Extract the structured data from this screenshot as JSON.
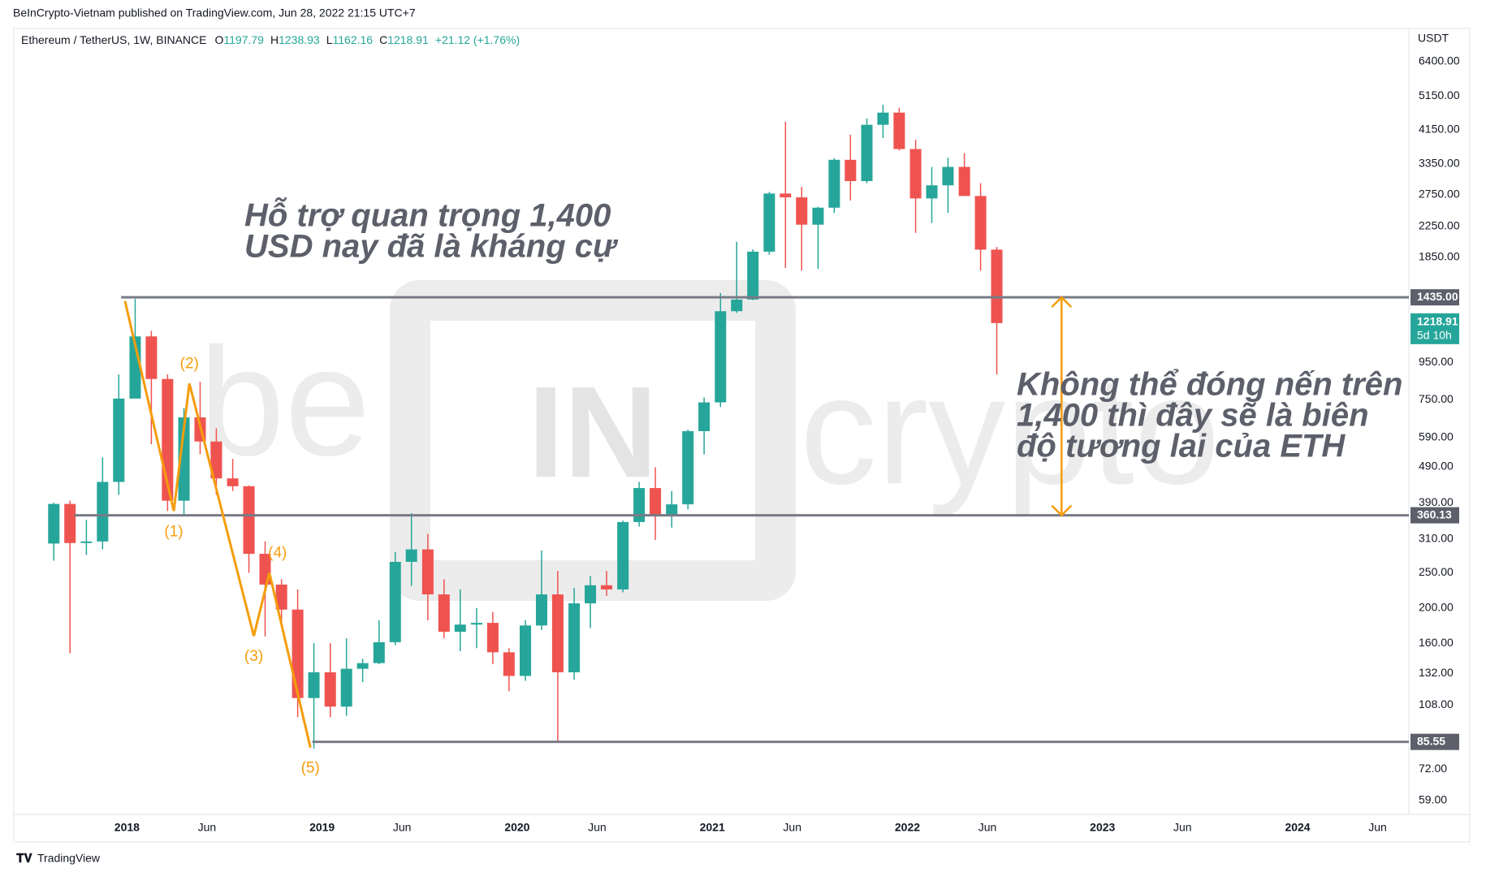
{
  "published": "BeInCrypto-Vietnam published on TradingView.com, Jun 28, 2022 21:15 UTC+7",
  "footer": "TradingView",
  "chart_data": {
    "type": "candlestick",
    "symbol": "Ethereum / TetherUS, 1W, BINANCE",
    "ohlc_header": [
      {
        "label": "O",
        "value": 1197.79
      },
      {
        "label": "H",
        "value": 1238.93
      },
      {
        "label": "L",
        "value": 1162.16
      },
      {
        "label": "C",
        "value": 1218.91
      }
    ],
    "change": "+21.12 (+1.76%)",
    "unit": "USDT",
    "log_scale": true,
    "up_color": "#26a69a",
    "down_color": "#ef5350",
    "xlim": [
      2017.42,
      2024.57
    ],
    "ylim": [
      54,
      7900
    ],
    "xticks": [
      {
        "value": 2018,
        "label": "2018"
      },
      {
        "value": 2018.41,
        "label": "Jun"
      },
      {
        "value": 2019,
        "label": "2019"
      },
      {
        "value": 2019.41,
        "label": "Jun"
      },
      {
        "value": 2020,
        "label": "2020"
      },
      {
        "value": 2020.41,
        "label": "Jun"
      },
      {
        "value": 2021,
        "label": "2021"
      },
      {
        "value": 2021.41,
        "label": "Jun"
      },
      {
        "value": 2022,
        "label": "2022"
      },
      {
        "value": 2022.41,
        "label": "Jun"
      },
      {
        "value": 2023,
        "label": "2023"
      },
      {
        "value": 2023.41,
        "label": "Jun"
      },
      {
        "value": 2024,
        "label": "2024"
      },
      {
        "value": 2024.41,
        "label": "Jun"
      }
    ],
    "yticks": [
      {
        "value": 6400,
        "label": "6400.00"
      },
      {
        "value": 5150,
        "label": "5150.00"
      },
      {
        "value": 4150,
        "label": "4150.00"
      },
      {
        "value": 3350,
        "label": "3350.00"
      },
      {
        "value": 2750,
        "label": "2750.00"
      },
      {
        "value": 2250,
        "label": "2250.00"
      },
      {
        "value": 1850,
        "label": "1850.00"
      },
      {
        "value": 950,
        "label": "950.00"
      },
      {
        "value": 750,
        "label": "750.00"
      },
      {
        "value": 590,
        "label": "590.00"
      },
      {
        "value": 490,
        "label": "490.00"
      },
      {
        "value": 390,
        "label": "390.00"
      },
      {
        "value": 310,
        "label": "310.00"
      },
      {
        "value": 250,
        "label": "250.00"
      },
      {
        "value": 200,
        "label": "200.00"
      },
      {
        "value": 160,
        "label": "160.00"
      },
      {
        "value": 132,
        "label": "132.00"
      },
      {
        "value": 108,
        "label": "108.00"
      },
      {
        "value": 72,
        "label": "72.00"
      },
      {
        "value": 59,
        "label": "59.00"
      }
    ],
    "x": [
      2017.625,
      2017.708,
      2017.792,
      2017.875,
      2017.958,
      2018.042,
      2018.125,
      2018.208,
      2018.292,
      2018.375,
      2018.458,
      2018.542,
      2018.625,
      2018.708,
      2018.792,
      2018.875,
      2018.958,
      2019.042,
      2019.125,
      2019.208,
      2019.292,
      2019.375,
      2019.458,
      2019.542,
      2019.625,
      2019.708,
      2019.792,
      2019.875,
      2019.958,
      2020.042,
      2020.125,
      2020.208,
      2020.292,
      2020.375,
      2020.458,
      2020.542,
      2020.625,
      2020.708,
      2020.792,
      2020.875,
      2020.958,
      2021.042,
      2021.125,
      2021.208,
      2021.292,
      2021.375,
      2021.458,
      2021.542,
      2021.625,
      2021.708,
      2021.792,
      2021.875,
      2021.958,
      2022.042,
      2022.125,
      2022.208,
      2022.292,
      2022.375,
      2022.458
    ],
    "open": [
      301,
      387,
      302,
      305,
      445,
      755,
      1120,
      855,
      395,
      670,
      575,
      455,
      433,
      282,
      232,
      198,
      113,
      133,
      107,
      136,
      141,
      161,
      268,
      290,
      218,
      172,
      180,
      182,
      151,
      130,
      179,
      218,
      133,
      206,
      231,
      225,
      345,
      428,
      359,
      386,
      614,
      737,
      1314,
      1415,
      1917,
      2772,
      2705,
      2275,
      2534,
      3433,
      3000,
      4287,
      4631,
      3676,
      2687,
      2920,
      3282,
      2729,
      1942
    ],
    "high": [
      390,
      395,
      350,
      520,
      880,
      1420,
      1160,
      880,
      710,
      840,
      625,
      515,
      435,
      305,
      240,
      225,
      160,
      160,
      165,
      145,
      185,
      285,
      365,
      320,
      240,
      225,
      200,
      195,
      155,
      185,
      288,
      253,
      227,
      245,
      253,
      348,
      445,
      488,
      420,
      620,
      760,
      1475,
      2040,
      1945,
      2800,
      4372,
      2890,
      2550,
      3470,
      4027,
      4460,
      4868,
      4778,
      3900,
      3280,
      3480,
      3580,
      2960,
      1975
    ],
    "low": [
      270,
      150,
      280,
      290,
      410,
      760,
      565,
      370,
      360,
      530,
      410,
      420,
      250,
      167,
      180,
      100,
      82,
      100,
      101,
      125,
      140,
      158,
      230,
      185,
      165,
      152,
      155,
      140,
      118,
      126,
      174,
      86,
      127,
      176,
      216,
      221,
      335,
      308,
      333,
      374,
      530,
      715,
      1300,
      1410,
      1880,
      1730,
      1700,
      1718,
      2450,
      2652,
      2960,
      3940,
      3640,
      2160,
      2300,
      2450,
      2770,
      1700,
      880
    ],
    "close": [
      387,
      302,
      305,
      445,
      755,
      1120,
      855,
      395,
      670,
      575,
      455,
      433,
      282,
      232,
      198,
      113,
      133,
      107,
      136,
      141,
      161,
      268,
      290,
      218,
      172,
      180,
      182,
      151,
      130,
      179,
      218,
      133,
      206,
      231,
      225,
      345,
      428,
      359,
      386,
      614,
      737,
      1314,
      1415,
      1917,
      2772,
      2705,
      2275,
      2534,
      3433,
      3000,
      4287,
      4631,
      3676,
      2687,
      2920,
      3282,
      2729,
      1942,
      1218.91
    ],
    "hlines": [
      {
        "value": 1435,
        "x0": 2017.97,
        "label": "1435.00"
      },
      {
        "value": 360.13,
        "x0": 2017.73,
        "label": "360.13"
      },
      {
        "value": 85.55,
        "x0": 2018.95,
        "label": "85.55"
      }
    ],
    "line_color": "#787b86",
    "last_price": {
      "value": 1218.91,
      "label": "1218.91",
      "countdown": "5d 10h"
    },
    "wave": {
      "color": "#f59d0b",
      "x": [
        2017.99,
        2018.24,
        2018.32,
        2018.65,
        2018.73,
        2018.94
      ],
      "y": [
        1401,
        370,
        831,
        167.5,
        250,
        82.5
      ],
      "labels": [
        "(1)",
        "(2)",
        "(3)",
        "(4)",
        "(5)"
      ]
    },
    "annotations": [
      [
        "Hỗ trợ quan trọng 1,400",
        "USD nay đã là kháng cự"
      ],
      [
        "Không thể đóng nến trên",
        "1,400 thì đây sẽ là biên",
        "độ tương lai của ETH"
      ]
    ],
    "watermark": [
      "be",
      "IN",
      "crypto"
    ]
  }
}
